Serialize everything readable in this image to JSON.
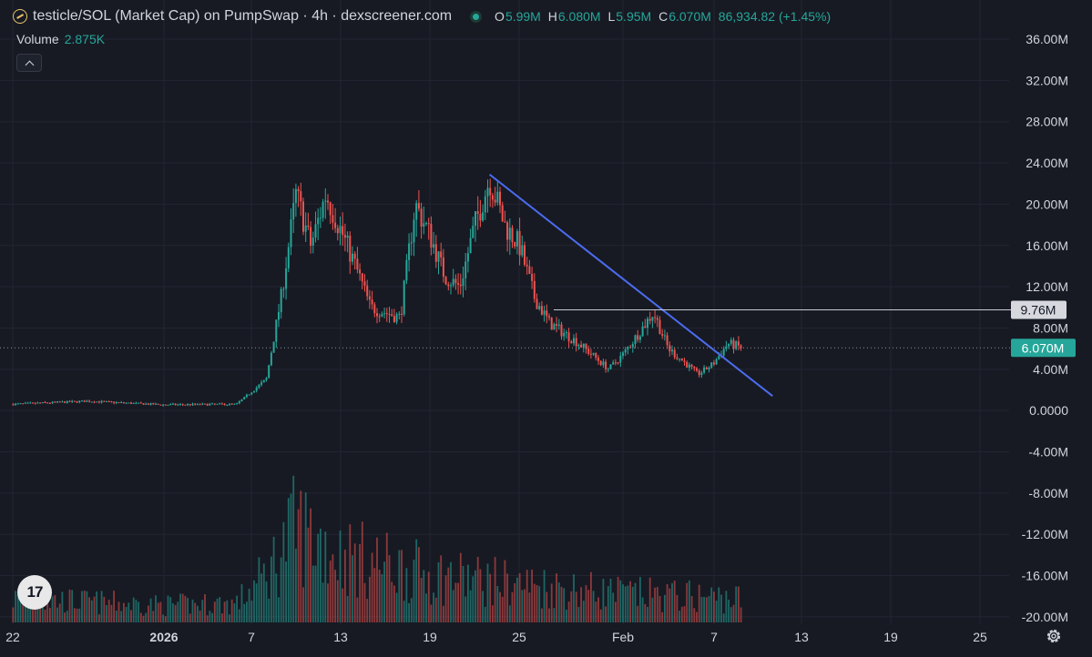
{
  "header": {
    "title": "testicle/SOL (Market Cap) on PumpSwap · 4h · dexscreener.com",
    "open_label": "O",
    "open": "5.99M",
    "high_label": "H",
    "high": "6.080M",
    "low_label": "L",
    "low": "5.95M",
    "close_label": "C",
    "close": "6.070M",
    "change": "86,934.82 (+1.45%)"
  },
  "volume": {
    "label": "Volume",
    "value": "2.875K"
  },
  "tv_logo": "17",
  "colors": {
    "background": "#171a23",
    "up": "#26a69a",
    "down": "#ef5350",
    "trendline": "#4b6cf0",
    "grid": "#232632",
    "text": "#d1d4dc"
  },
  "icons": [
    "logo-icon",
    "status-dot-icon",
    "chevron-up-icon",
    "tradingview-logo-icon",
    "settings-gear-icon"
  ],
  "chart_data": {
    "type": "candlestick",
    "y_axis_ticks": [
      "36.00M",
      "32.00M",
      "28.00M",
      "24.00M",
      "20.00M",
      "16.00M",
      "12.00M",
      "8.00M",
      "4.00M",
      "0.0000",
      "-4.00M",
      "-8.00M",
      "-12.00M",
      "-16.00M",
      "-20.00M"
    ],
    "ylim": [
      -20000000,
      38000000
    ],
    "x_axis_ticks": [
      "22",
      "2026",
      "7",
      "13",
      "19",
      "25",
      "Feb",
      "7",
      "13",
      "19",
      "25"
    ],
    "price_marker": {
      "label": "9.76M",
      "value": 9760000
    },
    "current_price": {
      "label": "6.070M",
      "value": 6070000
    },
    "trendline": {
      "from": {
        "date": "Jan 23",
        "value": 22900000
      },
      "to": {
        "date": "Feb 11",
        "value": 1400000
      }
    },
    "price_path": [
      {
        "date": "Dec 22",
        "value": 600000
      },
      {
        "date": "Dec 27",
        "value": 900000
      },
      {
        "date": "Jan 1",
        "value": 550000
      },
      {
        "date": "Jan 6",
        "value": 600000
      },
      {
        "date": "Jan 8",
        "value": 3000000
      },
      {
        "date": "Jan 9",
        "value": 11000000
      },
      {
        "date": "Jan 10",
        "value": 21000000
      },
      {
        "date": "Jan 11",
        "value": 16000000
      },
      {
        "date": "Jan 12",
        "value": 21000000
      },
      {
        "date": "Jan 14",
        "value": 14000000
      },
      {
        "date": "Jan 15",
        "value": 10000000
      },
      {
        "date": "Jan 17",
        "value": 9000000
      },
      {
        "date": "Jan 18",
        "value": 20000000
      },
      {
        "date": "Jan 19",
        "value": 17000000
      },
      {
        "date": "Jan 20",
        "value": 13000000
      },
      {
        "date": "Jan 21",
        "value": 12000000
      },
      {
        "date": "Jan 22",
        "value": 18000000
      },
      {
        "date": "Jan 23",
        "value": 22500000
      },
      {
        "date": "Jan 24",
        "value": 18000000
      },
      {
        "date": "Jan 25",
        "value": 16000000
      },
      {
        "date": "Jan 26",
        "value": 11000000
      },
      {
        "date": "Jan 27",
        "value": 8500000
      },
      {
        "date": "Jan 29",
        "value": 6500000
      },
      {
        "date": "Jan 31",
        "value": 4000000
      },
      {
        "date": "Feb 1",
        "value": 5500000
      },
      {
        "date": "Feb 2",
        "value": 7500000
      },
      {
        "date": "Feb 3",
        "value": 9500000
      },
      {
        "date": "Feb 4",
        "value": 6000000
      },
      {
        "date": "Feb 6",
        "value": 3500000
      },
      {
        "date": "Feb 7",
        "value": 4500000
      },
      {
        "date": "Feb 8",
        "value": 6500000
      },
      {
        "date": "Feb 9",
        "value": 6070000
      }
    ],
    "volume_path": [
      {
        "date": "Dec 22",
        "value": 0.25
      },
      {
        "date": "Jan 1",
        "value": 0.18
      },
      {
        "date": "Jan 6",
        "value": 0.2
      },
      {
        "date": "Jan 8",
        "value": 0.5
      },
      {
        "date": "Jan 10",
        "value": 1.0
      },
      {
        "date": "Jan 13",
        "value": 0.7
      },
      {
        "date": "Jan 19",
        "value": 0.5
      },
      {
        "date": "Jan 25",
        "value": 0.4
      },
      {
        "date": "Feb 1",
        "value": 0.3
      },
      {
        "date": "Feb 9",
        "value": 0.25
      }
    ]
  }
}
